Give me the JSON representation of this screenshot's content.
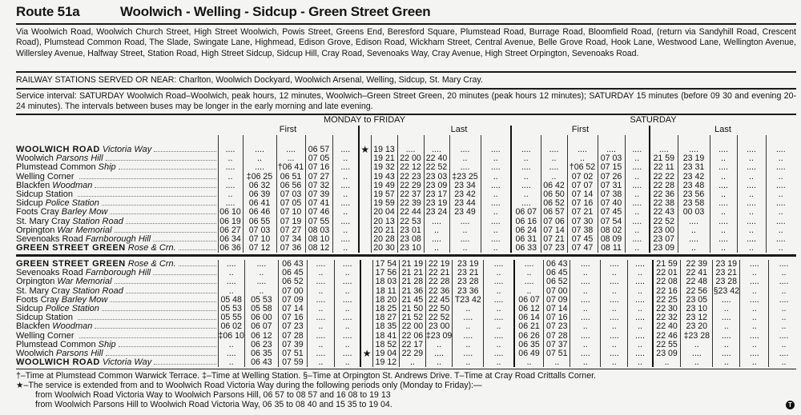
{
  "header": {
    "route": "Route 51a",
    "title": "Woolwich - Welling - Sidcup - Green Street Green"
  },
  "via": "Via Woolwich Road, Woolwich Church Street, High Street Woolwich, Powis Street, Greens End, Beresford Square, Plumstead Road, Burrage Road, Bloomfield Road, (return via Sandyhill Road, Crescent Road), Plumstead Common Road, The Slade, Swingate Lane, Highmead, Edison Grove, Edison Road, Wickham Street, Central Avenue, Belle Grove Road, Hook Lane, Westwood Lane, Wellington Avenue, Willersley Avenue, Halfway Street, Station Road, High Street Sidcup, Sidcup Hill, Cray Road, Sevenoaks Way, Cray Avenue, High Street Orpington, Sevenoaks Road.",
  "railway": "RAILWAY STATIONS SERVED OR NEAR: Charlton, Woolwich Dockyard, Woolwich Arsenal, Welling, Sidcup, St. Mary Cray.",
  "service": "Service interval: SATURDAY Woolwich Road–Woolwich, peak hours, 12 minutes, Woolwich–Green Street Green, 20 minutes (peak hours 12 minutes); SATURDAY 15 minutes (before 09 30 and evening 20-24 minutes).   The intervals between buses may be longer in the early morning and late evening.",
  "timetable": {
    "days": {
      "weekday": "MONDAY to FRIDAY",
      "saturday": "SATURDAY"
    },
    "first_label": "First",
    "last_label": "Last",
    "sections": [
      {
        "rows": [
          {
            "stop": "WOOLWICH  ROAD",
            "detail": "Victoria Way",
            "caps": true,
            "cells": [
              "....",
              "....",
              "....",
              "06 57",
              "....",
              "★",
              "19 13",
              "....",
              "....",
              "....",
              "....",
              "....",
              "....",
              "....",
              "....",
              "....",
              "....",
              "....",
              "....",
              "....",
              "...."
            ]
          },
          {
            "stop": "Woolwich",
            "detail": "Parsons Hill",
            "cells": [
              "..",
              "..",
              "...",
              "07 05",
              "..",
              "",
              "19 21",
              "22 00",
              "22 40",
              "..",
              "..",
              "..",
              "..",
              "..",
              "07 03",
              "..",
              "21 59",
              "23 19",
              "..",
              "..",
              ".."
            ]
          },
          {
            "stop": "Plumstead Common",
            "detail": "Ship",
            "cells": [
              "....",
              "....",
              "†06 41",
              "07 16",
              "....",
              "",
              "19 32",
              "22 12",
              "22 52",
              "....",
              "....",
              "....",
              "....",
              "†06 52",
              "07 15",
              "....",
              "22 11",
              "23 31",
              "....",
              "....",
              "...."
            ]
          },
          {
            "stop": "Welling Corner",
            "detail": "",
            "cells": [
              "..",
              "‡06 25",
              "06 51",
              "07 27",
              "..",
              "",
              "19 43",
              "22 23",
              "23 03",
              "‡23 25",
              "..",
              "..",
              "..",
              "07 02",
              "07 26",
              "..",
              "22 22",
              "23 42",
              "..",
              "..",
              ".."
            ]
          },
          {
            "stop": "Blackfen",
            "detail": "Woodman",
            "cells": [
              "....",
              "06 32",
              "06 56",
              "07 32",
              "....",
              "",
              "19 49",
              "22 29",
              "23 09",
              "23 34",
              "....",
              "....",
              "06 42",
              "07 07",
              "07 31",
              "....",
              "22 28",
              "23 48",
              "....",
              "....",
              "...."
            ]
          },
          {
            "stop": "Sidcup Station",
            "detail": "",
            "cells": [
              "..",
              "06 39",
              "07 03",
              "07 39",
              "..",
              "",
              "19 57",
              "22 37",
              "23 17",
              "23 42",
              "..",
              "..",
              "06 50",
              "07 14",
              "07 38",
              "..",
              "22 36",
              "23 56",
              "..",
              "..",
              ".."
            ]
          },
          {
            "stop": "Sidcup",
            "detail": "Police Station",
            "cells": [
              "....",
              "06 41",
              "07 05",
              "07 41",
              "....",
              "",
              "19 59",
              "22 39",
              "23 19",
              "23 44",
              "....",
              "....",
              "06 52",
              "07 16",
              "07 40",
              "....",
              "22 38",
              "23 58",
              "....",
              "....",
              "...."
            ]
          },
          {
            "stop": "Foots Cray",
            "detail": "Barley Mow",
            "cells": [
              "06 10",
              "06 46",
              "07 10",
              "07 46",
              "..",
              "",
              "20 04",
              "22 44",
              "23 24",
              "23 49",
              "..",
              "06 07",
              "06 57",
              "07 21",
              "07 45",
              "..",
              "22 43",
              "00 03",
              "..",
              "..",
              ".."
            ]
          },
          {
            "stop": "St. Mary Cray",
            "detail": "Station Road",
            "cells": [
              "06 19",
              "06 55",
              "07 19",
              "07 55",
              "....",
              "",
              "20 13",
              "22 53",
              "....",
              "....",
              "....",
              "06 16",
              "07 06",
              "07 30",
              "07 54",
              "....",
              "22 52",
              "....",
              "....",
              "....",
              "...."
            ]
          },
          {
            "stop": "Orpington",
            "detail": "War Memorial",
            "cells": [
              "06 27",
              "07 03",
              "07 27",
              "08 03",
              "..",
              "",
              "20 21",
              "23 01",
              "..",
              "..",
              "..",
              "06 24",
              "07 14",
              "07 38",
              "08 02",
              "..",
              "23 00",
              "..",
              "..",
              "..",
              ".."
            ]
          },
          {
            "stop": "Sevenoaks Road",
            "detail": "Farnborough Hill",
            "cells": [
              "06 34",
              "07 10",
              "07 34",
              "08 10",
              "....",
              "",
              "20 28",
              "23 08",
              "....",
              "....",
              "....",
              "06 31",
              "07 21",
              "07 45",
              "08 09",
              "....",
              "23 07",
              "....",
              "....",
              "....",
              "...."
            ]
          },
          {
            "stop": "GREEN  STREET  GREEN",
            "detail": "Rose & Crn.",
            "caps": true,
            "cells": [
              "06 36",
              "07 12",
              "07 36",
              "08 12",
              "..",
              "",
              "20 30",
              "23 10",
              "..",
              "..",
              "..",
              "06 33",
              "07 23",
              "07 47",
              "08 11",
              "..",
              "23 09",
              "..",
              "..",
              "..",
              ".."
            ]
          }
        ]
      },
      {
        "rows": [
          {
            "stop": "GREEN  STREET  GREEN",
            "detail": "Rose & Crn.",
            "caps": true,
            "cells": [
              "....",
              "....",
              "06 43",
              "....",
              "....",
              "",
              "17 54",
              "21 19",
              "22 19",
              "23 19",
              "....",
              "....",
              "06 43",
              "....",
              "....",
              "....",
              "21 59",
              "22 39",
              "23 19",
              "....",
              "...."
            ]
          },
          {
            "stop": "Sevenoaks Road",
            "detail": "Farnborough Hill",
            "cells": [
              "..",
              "..",
              "06 45",
              "..",
              "..",
              "",
              "17 56",
              "21 21",
              "22 21",
              "23 21",
              "..",
              "..",
              "06 45",
              "..",
              "..",
              "..",
              "22 01",
              "22 41",
              "23 21",
              "..",
              ".."
            ]
          },
          {
            "stop": "Orpington",
            "detail": "War Memorial",
            "cells": [
              "....",
              "....",
              "06 52",
              "....",
              "....",
              "",
              "18 03",
              "21 28",
              "22 28",
              "23 28",
              "....",
              "....",
              "06 52",
              "....",
              "....",
              "....",
              "22 08",
              "22 48",
              "23 28",
              "....",
              "...."
            ]
          },
          {
            "stop": "St. Mary Cray",
            "detail": "Station Road",
            "cells": [
              "..",
              "..",
              "07 00",
              "..",
              "..",
              "",
              "18 11",
              "21 36",
              "22 36",
              "23 36",
              "..",
              "..",
              "07 00",
              "..",
              "..",
              "..",
              "22 16",
              "22 56",
              "§23 42",
              "..",
              ".."
            ]
          },
          {
            "stop": "Foots Cray",
            "detail": "Barley Mow",
            "cells": [
              "05 48",
              "05 53",
              "07 09",
              "....",
              "....",
              "",
              "18 20",
              "21 45",
              "22 45",
              "T23 42",
              "....",
              "06 07",
              "07 09",
              "....",
              "....",
              "....",
              "22 25",
              "23 05",
              "....",
              "....",
              "...."
            ]
          },
          {
            "stop": "Sidcup",
            "detail": "Police Station",
            "cells": [
              "05 53",
              "05 58",
              "07 14",
              "..",
              "..",
              "",
              "18 25",
              "21 50",
              "22 50",
              "..",
              "..",
              "06 12",
              "07 14",
              "..",
              "..",
              "..",
              "22 30",
              "23 10",
              "..",
              "..",
              ".."
            ]
          },
          {
            "stop": "Sidcup Station",
            "detail": "",
            "cells": [
              "05 55",
              "06 00",
              "07 16",
              "....",
              "....",
              "",
              "18 27",
              "21 52",
              "22 52",
              "....",
              "....",
              "06 14",
              "07 16",
              "....",
              "....",
              "....",
              "22 32",
              "23 12",
              "....",
              "..",
              ".."
            ]
          },
          {
            "stop": "Blackfen",
            "detail": "Woodman",
            "cells": [
              "06 02",
              "06 07",
              "07 23",
              "..",
              "..",
              "",
              "18 35",
              "22 00",
              "23 00",
              "..",
              "..",
              "06 21",
              "07 23",
              "..",
              "..",
              "..",
              "22 40",
              "23 20",
              "..",
              "..",
              ".."
            ]
          },
          {
            "stop": "Welling Corner",
            "detail": "",
            "cells": [
              "‡06 10",
              "06 12",
              "07 28",
              "....",
              "....",
              "",
              "18 41",
              "22 06",
              "‡23 09",
              "....",
              "....",
              "06 26",
              "07 28",
              "....",
              "....",
              "....",
              "22 46",
              "‡23 28",
              "....",
              "....",
              "...."
            ]
          },
          {
            "stop": "Plumstead Common",
            "detail": "Ship",
            "cells": [
              "..",
              "06 23",
              "07 39",
              "..",
              "..",
              "",
              "18 52",
              "22 17",
              "..",
              "..",
              "..",
              "06 35",
              "07 37",
              "..",
              "..",
              "..",
              "22 55",
              "..",
              "..",
              "..",
              ".."
            ]
          },
          {
            "stop": "Woolwich",
            "detail": "Parsons Hill",
            "cells": [
              "....",
              "06 35",
              "07 51",
              "....",
              "....",
              "★",
              "19 04",
              "22 29",
              "....",
              "....",
              "....",
              "06 49",
              "07 51",
              "....",
              "....",
              "....",
              "23 09",
              "....",
              "....",
              "....",
              "...."
            ]
          },
          {
            "stop": "WOOLWICH  ROAD",
            "detail": "Victoria Way",
            "caps": true,
            "cells": [
              "..",
              "06 43",
              "07 59",
              "..",
              "..",
              "",
              "19 12",
              "..",
              "..",
              "..",
              "..",
              "..",
              "..",
              "..",
              "..",
              "..",
              "..",
              "..",
              "..",
              "..",
              ".."
            ]
          }
        ]
      }
    ]
  },
  "notes": {
    "symbols": "†–Time at Plumstead Common Warwick Terrace.   ‡–Time at Welling Station.   §–Time at Orpington St. Andrews Drive.   T–Time at Cray Road Crittalls Corner.",
    "star": "★–The service is extended from and to Woolwich Road Victoria Way during the following periods only (Monday to Friday):—",
    "line1": "from Woolwich Road Victoria Way to Woolwich Parsons Hill, 06 57 to 08 57 and 16 08 to 19 13",
    "line2": "from Woolwich Parsons Hill to Woolwich Road Victoria Way, 06 35 to 08 40 and 15 35 to 19 04."
  },
  "logo": "T"
}
